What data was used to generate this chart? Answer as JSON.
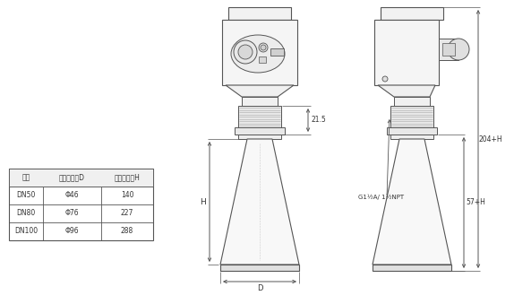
{
  "bg_color": "#ffffff",
  "line_color": "#555555",
  "dim_color": "#555555",
  "table_headers": [
    "法兰",
    "喇叭口直径D",
    "喇叭口高度H"
  ],
  "table_rows": [
    [
      "DN50",
      "Φ46",
      "140"
    ],
    [
      "DN80",
      "Φ76",
      "227"
    ],
    [
      "DN100",
      "Φ96",
      "288"
    ]
  ],
  "dim_215": "21.5",
  "dim_H": "H",
  "dim_D": "D",
  "dim_204H": "204+H",
  "dim_57H": "57+H",
  "dim_thread": "G1½A/ 1½NPT"
}
